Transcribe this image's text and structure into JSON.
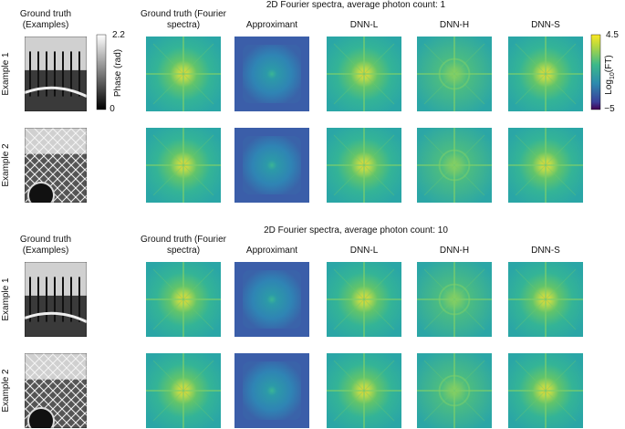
{
  "left_header": "Ground truth (Examples)",
  "phase_colorbar": {
    "label": "Phase (rad)",
    "max": "2.2",
    "min": "0"
  },
  "ft_colorbar": {
    "label_parts": [
      "Log",
      "10",
      "(FT)"
    ],
    "max": "4.5",
    "min": "−5"
  },
  "sections": [
    {
      "title": "2D Fourier spectra, average photon count: 1",
      "left_header": "Ground truth (Examples)",
      "columns": [
        "Ground truth (Fourier spectra)",
        "Approximant",
        "DNN-L",
        "DNN-H",
        "DNN-S"
      ],
      "rows": [
        "Example 1",
        "Example 2"
      ]
    },
    {
      "title": "2D Fourier spectra, average photon count: 10",
      "left_header": "Ground truth (Examples)",
      "columns": [
        "Ground truth (Fourier spectra)",
        "Approximant",
        "DNN-L",
        "DNN-H",
        "DNN-S"
      ],
      "rows": [
        "Example 1",
        "Example 2"
      ]
    }
  ]
}
